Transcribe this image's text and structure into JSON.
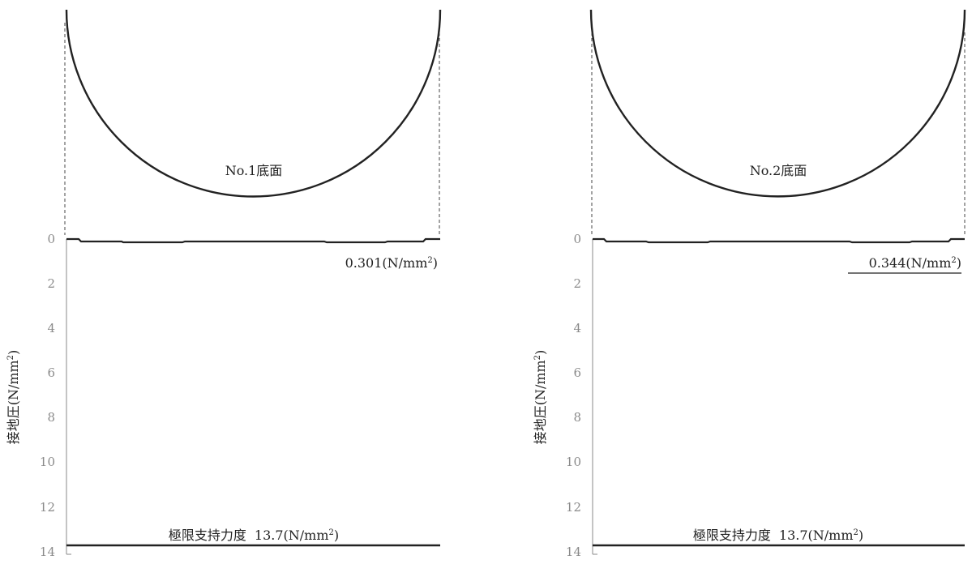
{
  "panels": [
    {
      "id": "no1",
      "base_label": "No.1底面",
      "max_pressure": {
        "value": "0.301",
        "unit": "(N/mm",
        "sup": "2",
        "close": ")",
        "underlined": false
      },
      "limit": {
        "label": "極限支持力度",
        "value": "13.7",
        "unit": "(N/mm",
        "sup": "2",
        "close": ")"
      },
      "y_axis": {
        "label": "接地圧",
        "unit": "(N/mm",
        "sup": "2",
        "close": ")"
      },
      "ticks": [
        "0",
        "2",
        "4",
        "6",
        "8",
        "10",
        "12",
        "14"
      ],
      "pressure_profile": [
        0.0,
        0.301,
        0.301,
        0.301,
        0.301,
        0.301,
        0.301,
        0.301,
        0.0
      ]
    },
    {
      "id": "no2",
      "base_label": "No.2底面",
      "max_pressure": {
        "value": "0.344",
        "unit": "(N/mm",
        "sup": "2",
        "close": ")",
        "underlined": true
      },
      "limit": {
        "label": "極限支持力度",
        "value": "13.7",
        "unit": "(N/mm",
        "sup": "2",
        "close": ")"
      },
      "y_axis": {
        "label": "接地圧",
        "unit": "(N/mm",
        "sup": "2",
        "close": ")"
      },
      "ticks": [
        "0",
        "2",
        "4",
        "6",
        "8",
        "10",
        "12",
        "14"
      ],
      "pressure_profile": [
        0.0,
        0.344,
        0.344,
        0.344,
        0.344,
        0.344,
        0.344,
        0.344,
        0.0
      ]
    }
  ],
  "y_range": [
    0,
    14
  ],
  "limit_value": 13.7
}
